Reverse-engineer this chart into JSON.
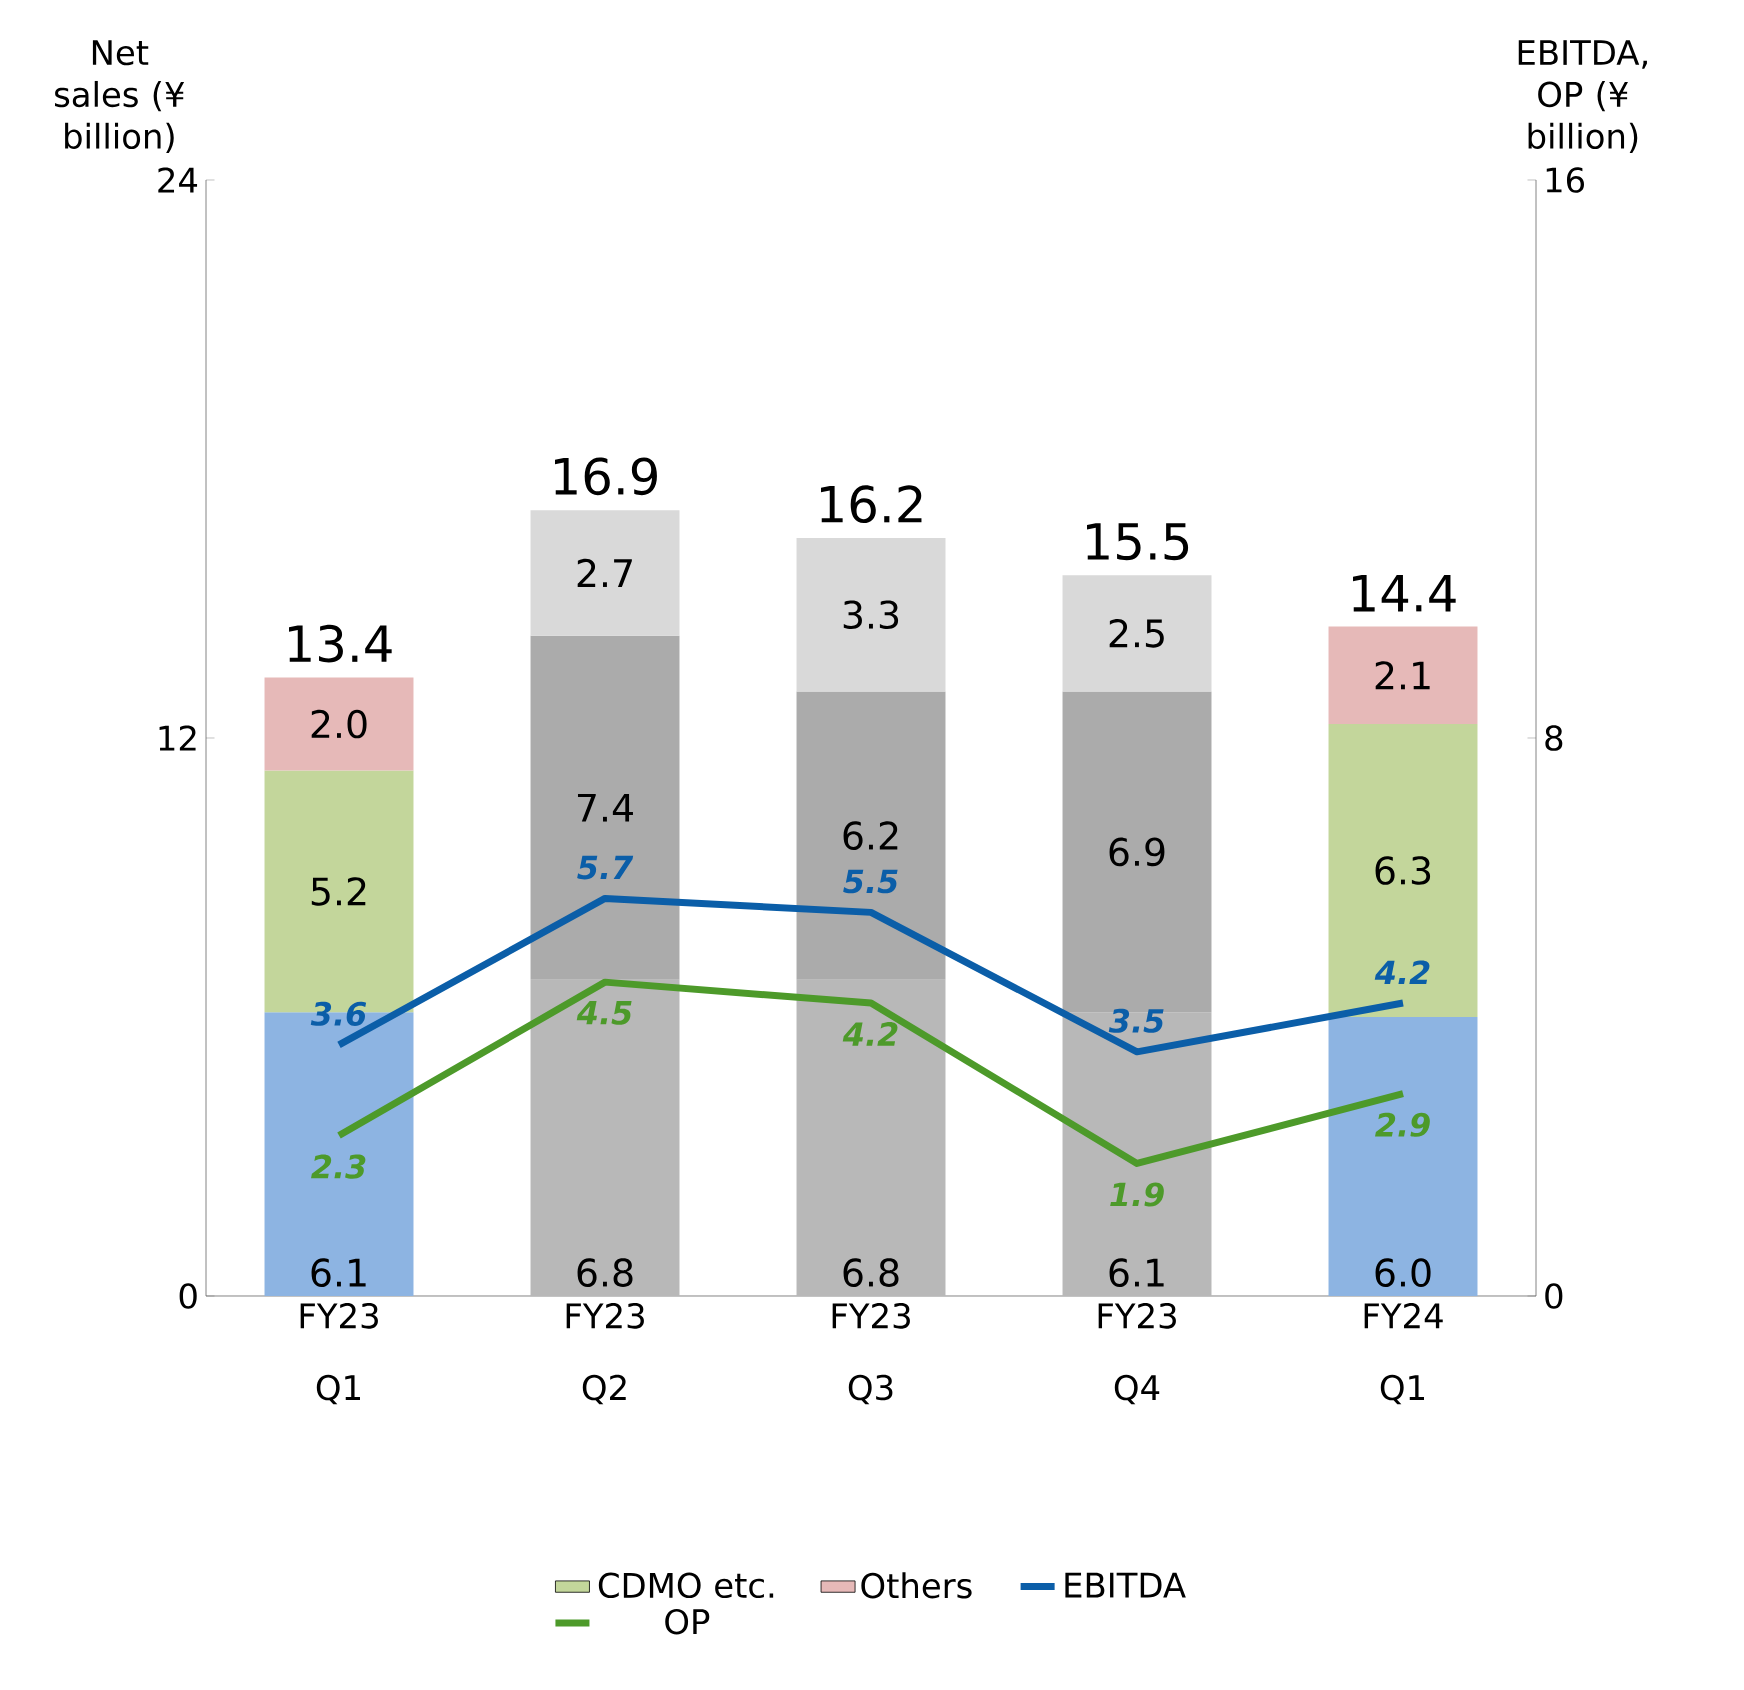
{
  "chart_data": {
    "type": "bar",
    "stacked": true,
    "ylabel": "Net sales (¥ billion)",
    "y2label": "EBITDA, OP (¥ billion)",
    "categories": [
      "FY23 Q1",
      "FY23 Q2",
      "FY23 Q3",
      "FY23 Q4",
      "FY24 Q1"
    ],
    "ylim": [
      0,
      24
    ],
    "yticks": [
      0,
      12,
      24
    ],
    "y2lim": [
      0,
      16
    ],
    "y2ticks": [
      0,
      8,
      16
    ],
    "legend": "bottom",
    "marker": "none",
    "line_style": "solid",
    "totals": [
      "13.4",
      "16.9",
      "16.2",
      "15.5",
      "14.4"
    ],
    "series": [
      {
        "values": [
          6.1,
          6.8,
          6.8,
          6.1,
          6.0
        ],
        "value_labels": [
          "6.1",
          "6.8",
          "6.8",
          "6.1",
          "6.0"
        ],
        "colors": [
          "#8db4e2",
          "#b8b8b8",
          "#b8b8b8",
          "#b8b8b8",
          "#8db4e2"
        ]
      },
      {
        "name": "CDMO etc.",
        "values": [
          5.2,
          7.4,
          6.2,
          6.9,
          6.3
        ],
        "value_labels": [
          "5.2",
          "7.4",
          "6.2",
          "6.9",
          "6.3"
        ],
        "colors": [
          "#c3d69b",
          "#ababab",
          "#ababab",
          "#ababab",
          "#c3d69b"
        ]
      },
      {
        "name": "Others",
        "values": [
          2.0,
          2.7,
          3.3,
          2.5,
          2.1
        ],
        "value_labels": [
          "2.0",
          "2.7",
          "3.3",
          "2.5",
          "2.1"
        ],
        "colors": [
          "#e6b9b8",
          "#d9d9d9",
          "#d9d9d9",
          "#d9d9d9",
          "#e6b9b8"
        ]
      },
      {
        "name": "EBITDA",
        "type": "line",
        "axis": "y2",
        "color": "#0b5ea8",
        "values": [
          3.6,
          5.7,
          5.5,
          3.5,
          4.2
        ],
        "value_labels": [
          "3.6",
          "5.7",
          "5.5",
          "3.5",
          "4.2"
        ]
      },
      {
        "name": "OP",
        "type": "line",
        "axis": "y2",
        "color": "#4d9a2a",
        "values": [
          2.3,
          4.5,
          4.2,
          1.9,
          2.9
        ],
        "value_labels": [
          "2.3",
          "4.5",
          "4.2",
          "1.9",
          "2.9"
        ]
      }
    ]
  }
}
